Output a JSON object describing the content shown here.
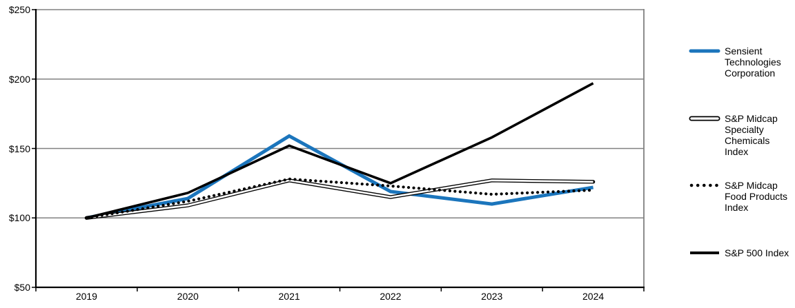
{
  "chart_data": {
    "type": "line",
    "title": "",
    "categories": [
      "2019",
      "2020",
      "2021",
      "2022",
      "2023",
      "2024"
    ],
    "series": [
      {
        "name": "Sensient Technologies Corporation",
        "key": "sensient",
        "style": "thick-solid",
        "color": "#1B75BC",
        "values": [
          100,
          114,
          159,
          119,
          110,
          122
        ]
      },
      {
        "name": "S&P Midcap Specialty Chemicals Index",
        "key": "specialty-chemicals",
        "style": "double-outline",
        "color": "#000000",
        "values": [
          100,
          109,
          127,
          115,
          127,
          126
        ]
      },
      {
        "name": "S&P Midcap Food Products Index",
        "key": "food-products",
        "style": "dotted",
        "color": "#000000",
        "values": [
          100,
          112,
          128,
          123,
          117,
          120
        ]
      },
      {
        "name": "S&P 500 Index",
        "key": "sp500",
        "style": "solid",
        "color": "#000000",
        "values": [
          100,
          118,
          152,
          125,
          158,
          197
        ]
      }
    ],
    "draw_order": [
      0,
      1,
      3,
      2
    ],
    "y_axis": {
      "min": 50,
      "max": 250,
      "step": 50,
      "tick_labels": [
        "$50",
        "$100",
        "$150",
        "$200",
        "$250"
      ]
    },
    "x_axis": {
      "tick_labels": [
        "2019",
        "2020",
        "2021",
        "2022",
        "2023",
        "2024"
      ]
    },
    "grid": true,
    "legend_position": "right"
  },
  "legend": {
    "items": [
      {
        "label": "Sensient Technologies Corporation"
      },
      {
        "label": "S&P Midcap Specialty Chemicals Index"
      },
      {
        "label": "S&P Midcap Food Products Index"
      },
      {
        "label": "S&P 500 Index"
      }
    ]
  },
  "colors": {
    "accent_blue": "#1B75BC",
    "line_black": "#000000",
    "grid_gray": "#808080",
    "background": "#FFFFFF"
  }
}
